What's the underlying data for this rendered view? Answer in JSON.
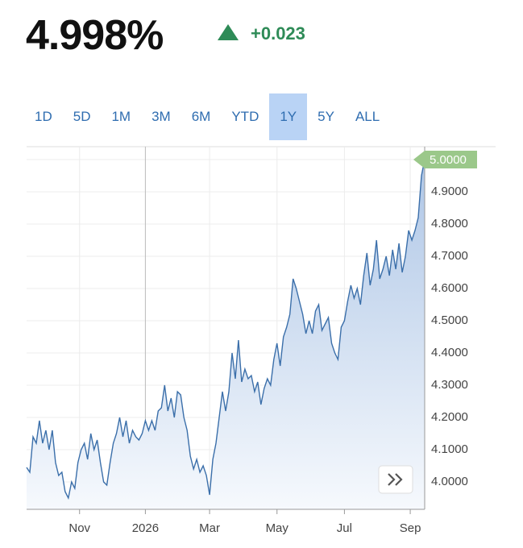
{
  "header": {
    "price": "4.998%",
    "change": "+0.023",
    "ranges": [
      "1D",
      "5D",
      "1M",
      "3M",
      "6M",
      "YTD",
      "1Y",
      "5Y",
      "ALL"
    ],
    "selected_range": "1Y"
  },
  "chart_data": {
    "type": "area",
    "color": "#3b6faa",
    "grid": true,
    "values": [
      4.045,
      4.03,
      4.14,
      4.12,
      4.19,
      4.12,
      4.16,
      4.1,
      4.16,
      4.06,
      4.02,
      4.03,
      3.97,
      3.95,
      4.0,
      3.98,
      4.06,
      4.1,
      4.12,
      4.07,
      4.15,
      4.1,
      4.13,
      4.06,
      4.0,
      3.99,
      4.06,
      4.12,
      4.15,
      4.2,
      4.14,
      4.19,
      4.12,
      4.16,
      4.14,
      4.13,
      4.15,
      4.19,
      4.16,
      4.19,
      4.16,
      4.22,
      4.23,
      4.3,
      4.22,
      4.26,
      4.2,
      4.28,
      4.27,
      4.2,
      4.16,
      4.08,
      4.04,
      4.07,
      4.03,
      4.05,
      4.02,
      3.96,
      4.07,
      4.12,
      4.2,
      4.28,
      4.22,
      4.28,
      4.4,
      4.32,
      4.44,
      4.31,
      4.35,
      4.32,
      4.33,
      4.28,
      4.31,
      4.24,
      4.29,
      4.32,
      4.3,
      4.38,
      4.43,
      4.36,
      4.45,
      4.48,
      4.52,
      4.63,
      4.6,
      4.56,
      4.52,
      4.46,
      4.5,
      4.46,
      4.53,
      4.55,
      4.47,
      4.49,
      4.51,
      4.43,
      4.4,
      4.38,
      4.48,
      4.5,
      4.56,
      4.61,
      4.57,
      4.6,
      4.55,
      4.64,
      4.71,
      4.61,
      4.66,
      4.75,
      4.63,
      4.66,
      4.7,
      4.64,
      4.72,
      4.66,
      4.74,
      4.65,
      4.7,
      4.78,
      4.75,
      4.78,
      4.82,
      4.95,
      5.0
    ],
    "xlim": [
      0,
      124
    ],
    "xticks": [
      {
        "value": 16.5,
        "label": "Nov"
      },
      {
        "value": 37,
        "label": "2026"
      },
      {
        "value": 57,
        "label": "Mar"
      },
      {
        "value": 78,
        "label": "May"
      },
      {
        "value": 99,
        "label": "Jul"
      },
      {
        "value": 119.5,
        "label": "Sep"
      }
    ],
    "ylim": [
      3.915,
      5.04
    ],
    "yticks": [
      {
        "value": 4.0,
        "label": "4.0000"
      },
      {
        "value": 4.1,
        "label": "4.1000"
      },
      {
        "value": 4.2,
        "label": "4.2000"
      },
      {
        "value": 4.3,
        "label": "4.3000"
      },
      {
        "value": 4.4,
        "label": "4.4000"
      },
      {
        "value": 4.5,
        "label": "4.5000"
      },
      {
        "value": 4.6,
        "label": "4.6000"
      },
      {
        "value": 4.7,
        "label": "4.7000"
      },
      {
        "value": 4.8,
        "label": "4.8000"
      },
      {
        "value": 4.9,
        "label": "4.9000"
      },
      {
        "value": 5.0,
        "label": "5.0000"
      }
    ],
    "price_tag": {
      "value": 5.0,
      "label": "5.0000"
    }
  }
}
